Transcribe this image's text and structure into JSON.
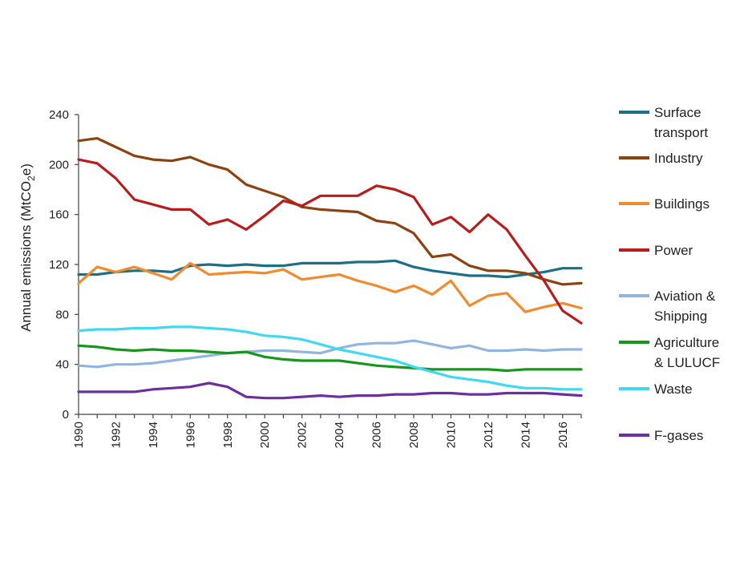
{
  "chart_data": {
    "type": "line",
    "ylabel_main": "Annual emissions (MtCO",
    "ylabel_sub": "2",
    "ylabel_end": "e)",
    "ylim": [
      0,
      240
    ],
    "yticks": [
      0,
      40,
      80,
      120,
      160,
      200,
      240
    ],
    "xlim": [
      1990,
      2017
    ],
    "xticks": [
      "1990",
      "1992",
      "1994",
      "1996",
      "1998",
      "2000",
      "2002",
      "2004",
      "2006",
      "2008",
      "2010",
      "2012",
      "2014",
      "2016"
    ],
    "grid": false,
    "legend_position": "right",
    "x": [
      1990,
      1991,
      1992,
      1993,
      1994,
      1995,
      1996,
      1997,
      1998,
      1999,
      2000,
      2001,
      2002,
      2003,
      2004,
      2005,
      2006,
      2007,
      2008,
      2009,
      2010,
      2011,
      2012,
      2013,
      2014,
      2015,
      2016,
      2017
    ],
    "series": [
      {
        "name": [
          "Surface",
          "transport"
        ],
        "color": "#1b6f86",
        "values": [
          112,
          112,
          114,
          115,
          115,
          114,
          119,
          120,
          119,
          120,
          119,
          119,
          121,
          121,
          121,
          122,
          122,
          123,
          118,
          115,
          113,
          111,
          111,
          110,
          112,
          114,
          117,
          117
        ]
      },
      {
        "name": [
          "Industry"
        ],
        "color": "#8c4211",
        "values": [
          219,
          221,
          214,
          207,
          204,
          203,
          206,
          200,
          196,
          184,
          179,
          174,
          166,
          164,
          163,
          162,
          155,
          153,
          145,
          126,
          128,
          119,
          115,
          115,
          113,
          108,
          104,
          105
        ]
      },
      {
        "name": [
          "Buildings"
        ],
        "color": "#f28a2e",
        "values": [
          105,
          118,
          114,
          118,
          113,
          108,
          121,
          112,
          113,
          114,
          113,
          116,
          108,
          110,
          112,
          107,
          103,
          98,
          103,
          96,
          107,
          87,
          95,
          97,
          82,
          86,
          89,
          85
        ]
      },
      {
        "name": [
          "Power"
        ],
        "color": "#b91c1c",
        "values": [
          204,
          201,
          189,
          172,
          168,
          164,
          164,
          152,
          156,
          148,
          159,
          171,
          167,
          175,
          175,
          175,
          183,
          180,
          174,
          152,
          158,
          146,
          160,
          148,
          127,
          107,
          83,
          73
        ]
      },
      {
        "name": [
          "Aviation &",
          "Shipping"
        ],
        "color": "#92b4e0",
        "values": [
          39,
          38,
          40,
          40,
          41,
          43,
          45,
          47,
          49,
          50,
          51,
          51,
          50,
          49,
          53,
          56,
          57,
          57,
          59,
          56,
          53,
          55,
          51,
          51,
          52,
          51,
          52,
          52
        ]
      },
      {
        "name": [
          "Agriculture",
          "& LULUCF"
        ],
        "color": "#16971c",
        "values": [
          55,
          54,
          52,
          51,
          52,
          51,
          51,
          50,
          49,
          50,
          46,
          44,
          43,
          43,
          43,
          41,
          39,
          38,
          37,
          36,
          36,
          36,
          36,
          35,
          36,
          36,
          36,
          36
        ]
      },
      {
        "name": [
          "Waste"
        ],
        "color": "#3fd9f0",
        "values": [
          67,
          68,
          68,
          69,
          69,
          70,
          70,
          69,
          68,
          66,
          63,
          62,
          60,
          56,
          52,
          49,
          46,
          43,
          38,
          34,
          30,
          28,
          26,
          23,
          21,
          21,
          20,
          20
        ]
      },
      {
        "name": [
          "F-gases"
        ],
        "color": "#6b2fa0",
        "values": [
          18,
          18,
          18,
          18,
          20,
          21,
          22,
          25,
          22,
          14,
          13,
          13,
          14,
          15,
          14,
          15,
          15,
          16,
          16,
          17,
          17,
          16,
          16,
          17,
          17,
          17,
          16,
          15
        ]
      }
    ]
  }
}
